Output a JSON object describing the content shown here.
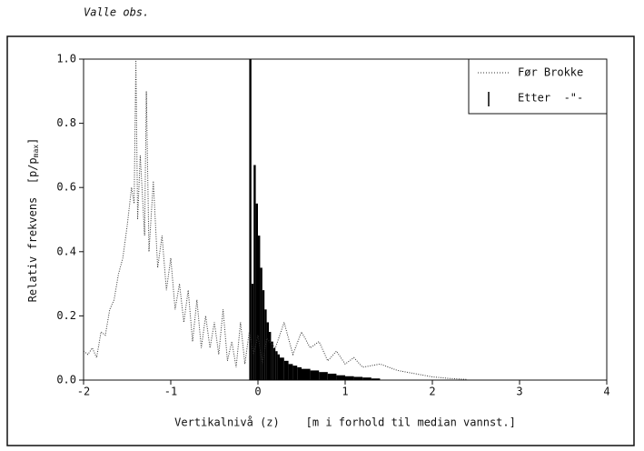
{
  "chart_data": {
    "type": "line_histogram",
    "title": "Valle obs.",
    "xlabel": "Vertikalnivå (z)    [m i forhold til median vannst.]",
    "ylabel": "Relativ frekvens  [p/p",
    "ylabel_sub": "max",
    "ylabel_end": "]",
    "xlim": [
      -2,
      4
    ],
    "ylim": [
      0,
      1
    ],
    "xticks": [
      -2,
      -1,
      0,
      1,
      2,
      3,
      4
    ],
    "yticks": [
      {
        "value": 0,
        "label": "0.0"
      },
      {
        "value": 0.2,
        "label": "0.2"
      },
      {
        "value": 0.4,
        "label": "0.4"
      },
      {
        "value": 0.6,
        "label": "0.6"
      },
      {
        "value": 0.8,
        "label": "0.8"
      },
      {
        "value": 1,
        "label": "1.0"
      }
    ],
    "legend": "upper right",
    "line": {
      "name": "Før Brokke",
      "color": "#333333",
      "x": [
        -2.0,
        -1.95,
        -1.9,
        -1.85,
        -1.8,
        -1.75,
        -1.7,
        -1.65,
        -1.6,
        -1.55,
        -1.5,
        -1.45,
        -1.42,
        -1.4,
        -1.38,
        -1.35,
        -1.3,
        -1.28,
        -1.25,
        -1.2,
        -1.15,
        -1.1,
        -1.05,
        -1.0,
        -0.95,
        -0.9,
        -0.85,
        -0.8,
        -0.75,
        -0.7,
        -0.65,
        -0.6,
        -0.55,
        -0.5,
        -0.45,
        -0.4,
        -0.35,
        -0.3,
        -0.25,
        -0.2,
        -0.15,
        -0.1,
        -0.05,
        0,
        0.05,
        0.1,
        0.2,
        0.3,
        0.4,
        0.5,
        0.6,
        0.7,
        0.8,
        0.9,
        1.0,
        1.1,
        1.2,
        1.4,
        1.6,
        1.8,
        2.0,
        2.2,
        2.4
      ],
      "values": [
        0.09,
        0.08,
        0.1,
        0.07,
        0.15,
        0.14,
        0.22,
        0.25,
        0.33,
        0.38,
        0.48,
        0.6,
        0.55,
        1.0,
        0.5,
        0.7,
        0.45,
        0.9,
        0.4,
        0.62,
        0.35,
        0.45,
        0.28,
        0.38,
        0.22,
        0.3,
        0.18,
        0.28,
        0.12,
        0.25,
        0.1,
        0.2,
        0.1,
        0.18,
        0.08,
        0.22,
        0.06,
        0.12,
        0.04,
        0.18,
        0.05,
        0.15,
        0.08,
        0.14,
        0.05,
        0.13,
        0.1,
        0.18,
        0.08,
        0.15,
        0.1,
        0.12,
        0.06,
        0.09,
        0.05,
        0.07,
        0.04,
        0.05,
        0.03,
        0.02,
        0.01,
        0.005,
        0.002
      ]
    },
    "histogram": {
      "name": "Etter  -\"-",
      "color": "#000000",
      "bins": [
        -0.1,
        -0.075,
        -0.05,
        -0.025,
        0,
        0.025,
        0.05,
        0.075,
        0.1,
        0.125,
        0.15,
        0.175,
        0.2,
        0.225,
        0.25,
        0.3,
        0.35,
        0.4,
        0.45,
        0.5,
        0.6,
        0.7,
        0.8,
        0.9,
        1.0,
        1.1,
        1.2,
        1.3,
        1.4
      ],
      "values": [
        1.0,
        0.3,
        0.67,
        0.55,
        0.45,
        0.35,
        0.28,
        0.22,
        0.18,
        0.15,
        0.12,
        0.1,
        0.09,
        0.08,
        0.07,
        0.06,
        0.05,
        0.045,
        0.04,
        0.035,
        0.03,
        0.025,
        0.02,
        0.015,
        0.012,
        0.01,
        0.008,
        0.005
      ]
    }
  }
}
